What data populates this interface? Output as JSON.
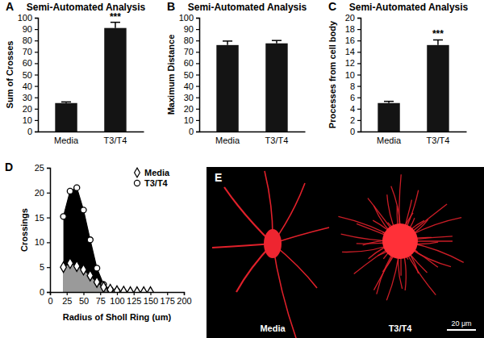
{
  "chart_data": [
    {
      "type": "bar",
      "panel": "A",
      "title": "Semi-Automated Analysis",
      "y_label": "Sum of Crosses",
      "categories": [
        "Media",
        "T3/T4"
      ],
      "values": [
        25,
        91
      ],
      "errors": [
        1,
        5
      ],
      "significance": [
        null,
        "***"
      ],
      "color": "#141414",
      "ylim": [
        0,
        100
      ],
      "yticks": [
        0,
        10,
        20,
        30,
        40,
        50,
        60,
        70,
        80,
        90,
        100
      ]
    },
    {
      "type": "bar",
      "panel": "B",
      "title": "Semi-Automated Analysis",
      "y_label": "Maximum Distance",
      "categories": [
        "Media",
        "T3/T4"
      ],
      "values": [
        76,
        77.5
      ],
      "errors": [
        3.5,
        2.5
      ],
      "color": "#141414",
      "ylim": [
        0,
        100
      ],
      "yticks": [
        0,
        10,
        20,
        30,
        40,
        50,
        60,
        70,
        80,
        90,
        100
      ]
    },
    {
      "type": "bar",
      "panel": "C",
      "title": "Semi-Automated Analysis",
      "y_label": "Processes from cell body",
      "categories": [
        "Media",
        "T3/T4"
      ],
      "values": [
        5,
        15.2
      ],
      "errors": [
        0.3,
        0.9
      ],
      "significance": [
        null,
        "***"
      ],
      "color": "#141414",
      "ylim": [
        0,
        20
      ],
      "yticks": [
        0,
        2,
        4,
        6,
        8,
        10,
        12,
        14,
        16,
        18,
        20
      ]
    },
    {
      "type": "line",
      "panel": "D",
      "x_label": "Radius of Sholl Ring (um)",
      "y_label": "Crossings",
      "xlim": [
        0,
        200
      ],
      "ylim": [
        0,
        25
      ],
      "xticks": [
        0,
        25,
        50,
        75,
        100,
        125,
        150,
        175,
        200
      ],
      "yticks": [
        0,
        5,
        10,
        15,
        20,
        25
      ],
      "legend": "top-right",
      "series": [
        {
          "name": "Media",
          "color": "#9a9a9a",
          "marker": "diamond",
          "x": [
            20,
            30,
            40,
            50,
            60,
            70,
            80,
            90,
            100,
            110,
            120,
            130,
            140,
            150
          ],
          "values": [
            5,
            5.8,
            5.2,
            4.5,
            3.3,
            2,
            1,
            0.5,
            0.2,
            0.1,
            0,
            0,
            0,
            0
          ]
        },
        {
          "name": "T3/T4",
          "color": "#000000",
          "marker": "circle",
          "x": [
            20,
            30,
            40,
            50,
            60,
            70,
            80,
            90,
            100,
            110
          ],
          "values": [
            15.2,
            20.3,
            21,
            16.5,
            10.5,
            4.8,
            1.5,
            0.5,
            0.2,
            0
          ]
        }
      ]
    }
  ],
  "image": {
    "panel": "E",
    "labels": [
      "Media",
      "T3/T4"
    ],
    "scale_bar": "20 μm"
  }
}
